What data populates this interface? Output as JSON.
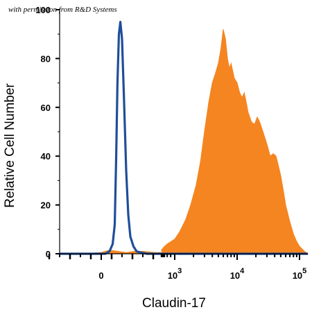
{
  "watermark": "with permission from R&D Systems",
  "chart_data": {
    "type": "area",
    "title": "",
    "xlabel": "Claudin-17",
    "ylabel": "Relative Cell Number",
    "x_scale": "biexponential",
    "xlim": [
      -400,
      150000
    ],
    "ylim": [
      0,
      100
    ],
    "y_ticks": [
      "0",
      "20",
      "40",
      "60",
      "80",
      "100"
    ],
    "x_ticks": [
      {
        "base": "0",
        "exp": ""
      },
      {
        "base": "10",
        "exp": "3"
      },
      {
        "base": "10",
        "exp": "4"
      },
      {
        "base": "10",
        "exp": "5"
      }
    ],
    "grid": false,
    "legend": "none",
    "series": [
      {
        "role": "isotype control (outline)",
        "color": "#1f4e9a",
        "style": "line",
        "x": [
          -300,
          0,
          20,
          40,
          55,
          65,
          72,
          78,
          85,
          92,
          100,
          110,
          120,
          130,
          140,
          155,
          170,
          190,
          220,
          300,
          500,
          1000,
          150000
        ],
        "y": [
          0,
          0,
          0,
          1,
          4,
          12,
          40,
          70,
          90,
          95,
          88,
          62,
          34,
          16,
          7,
          3,
          1,
          0.5,
          0,
          0,
          0,
          0,
          0
        ]
      },
      {
        "role": "Claudin-17 stained (filled)",
        "color": "#f58520",
        "style": "filled",
        "x": [
          -400,
          -100,
          0,
          40,
          80,
          120,
          160,
          200,
          260,
          320,
          400,
          500,
          600,
          700,
          800,
          1000,
          1200,
          1500,
          1800,
          2200,
          2600,
          3000,
          3500,
          4000,
          4500,
          5000,
          5500,
          6000,
          6500,
          7000,
          7500,
          8000,
          9000,
          10000,
          11000,
          12000,
          13000,
          14000,
          15000,
          17000,
          19000,
          21000,
          23000,
          26000,
          30000,
          34000,
          38000,
          42000,
          46000,
          50000,
          55000,
          60000,
          70000,
          80000,
          90000,
          100000,
          120000,
          150000
        ],
        "y": [
          0,
          0,
          0.5,
          1.5,
          1,
          0.5,
          1,
          1,
          0.5,
          0.5,
          1,
          1.5,
          2,
          3,
          4,
          6,
          9,
          14,
          20,
          28,
          38,
          50,
          62,
          70,
          74,
          78,
          84,
          92,
          88,
          80,
          76,
          78,
          72,
          70,
          66,
          64,
          66,
          62,
          58,
          54,
          53,
          56,
          54,
          50,
          45,
          40,
          41,
          40,
          36,
          32,
          26,
          20,
          13,
          8,
          5,
          3,
          1,
          0
        ]
      }
    ]
  }
}
